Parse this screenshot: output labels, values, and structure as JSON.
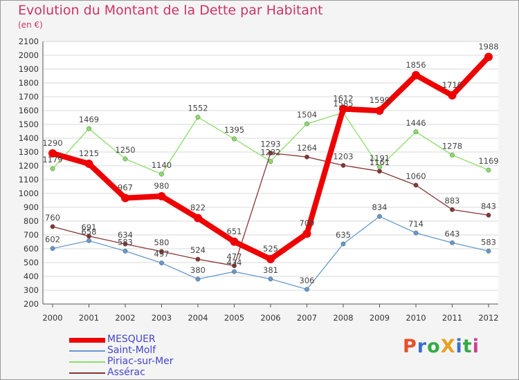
{
  "title": "Evolution du Montant de la Dette par Habitant",
  "subtitle": "(en €)",
  "logo": {
    "text": "ProXiti",
    "letter_colors": [
      "#e8502a",
      "#3a6fd0",
      "#33aa44",
      "#e8a020",
      "#3a6fd0",
      "#33aa44",
      "#d04090"
    ]
  },
  "chart_data": {
    "type": "line",
    "title": "Evolution du Montant de la Dette par Habitant",
    "subtitle": "(en €)",
    "x": [
      "2000",
      "2001",
      "2002",
      "2003",
      "2004",
      "2005",
      "2006",
      "2007",
      "2008",
      "2009",
      "2010",
      "2011",
      "2012"
    ],
    "ylim": [
      200,
      2100
    ],
    "yticks": [
      200,
      300,
      400,
      500,
      600,
      700,
      800,
      900,
      1000,
      1100,
      1200,
      1300,
      1400,
      1500,
      1600,
      1700,
      1800,
      1900,
      2000,
      2100
    ],
    "grid": "horizontal",
    "legend_placement": "bottom-left",
    "series": [
      {
        "name": "MESQUER",
        "color": "#ee0000",
        "values": [
          1290,
          1215,
          967,
          980,
          822,
          651,
          525,
          709,
          1612,
          1599,
          1856,
          1710,
          1988
        ]
      },
      {
        "name": "Saint-Molf",
        "color": "#6699cc",
        "values": [
          602,
          658,
          583,
          497,
          380,
          434,
          381,
          306,
          635,
          834,
          714,
          643,
          583
        ]
      },
      {
        "name": "Piriac-sur-Mer",
        "color": "#88dd66",
        "values": [
          1179,
          1469,
          1250,
          1140,
          1552,
          1395,
          1232,
          1504,
          1585,
          1191,
          1446,
          1278,
          1169
        ]
      },
      {
        "name": "Assérac",
        "color": "#883333",
        "values": [
          760,
          691,
          634,
          580,
          524,
          477,
          1293,
          1264,
          1203,
          1161,
          1060,
          883,
          843
        ]
      }
    ]
  }
}
